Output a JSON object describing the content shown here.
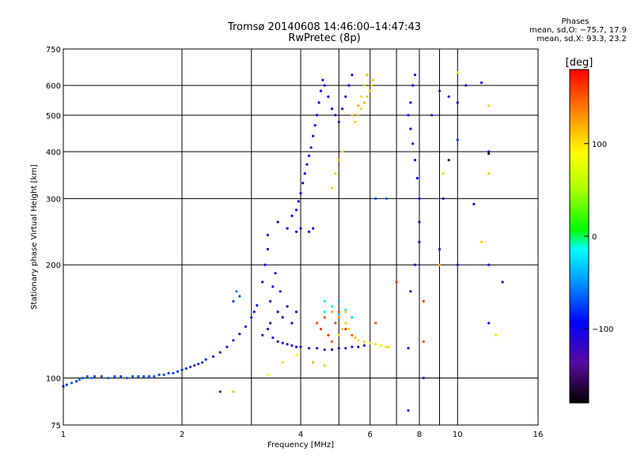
{
  "header": {
    "title_line1": "Tromsø 20140608 14:46:00–14:47:43",
    "title_line2": "RwPretec (8p)",
    "phase_title": "Phases",
    "phase_o": "mean, sd,O: −75.7, 17.9",
    "phase_x": "mean, sd,X:  93.3, 23.2"
  },
  "colorbar": {
    "label": "[deg]",
    "ticks": [
      {
        "value": 100,
        "label": "100"
      },
      {
        "value": 0,
        "label": "0"
      },
      {
        "value": -100,
        "label": "−100"
      }
    ],
    "range": [
      -180,
      180
    ]
  },
  "chart_data": {
    "type": "scatter",
    "xlabel": "Frequency [MHz]",
    "ylabel": "Stationary phase Virtual Height [km]",
    "x_scale": "log",
    "y_scale": "log",
    "xlim": [
      1,
      16
    ],
    "ylim": [
      75,
      750
    ],
    "grid": true,
    "x_ticks": [
      1,
      2,
      4,
      6,
      8,
      10,
      16
    ],
    "x_minor_gridlines": [
      3,
      5,
      7,
      9
    ],
    "y_ticks": [
      75,
      100,
      200,
      300,
      400,
      500,
      600,
      750
    ],
    "color_by": "phase (deg)",
    "series": [
      {
        "points": [
          [
            1.0,
            95,
            -85
          ],
          [
            1.02,
            96,
            -80
          ],
          [
            1.05,
            97,
            -70
          ],
          [
            1.08,
            98,
            -75
          ],
          [
            1.1,
            99,
            -60
          ],
          [
            1.12,
            100,
            -70
          ],
          [
            1.15,
            101,
            -65
          ],
          [
            1.18,
            100,
            -60
          ],
          [
            1.2,
            101,
            -75
          ],
          [
            1.25,
            101,
            -70
          ],
          [
            1.3,
            100,
            -65
          ],
          [
            1.35,
            101,
            -70
          ],
          [
            1.4,
            101,
            -72
          ],
          [
            1.45,
            100,
            -68
          ],
          [
            1.5,
            101,
            -70
          ],
          [
            1.55,
            101,
            -66
          ],
          [
            1.6,
            101,
            -72
          ],
          [
            1.65,
            101,
            -70
          ],
          [
            1.7,
            101,
            -68
          ],
          [
            1.75,
            102,
            -72
          ],
          [
            1.8,
            102,
            -70
          ],
          [
            1.85,
            103,
            -75
          ],
          [
            1.9,
            103,
            -72
          ],
          [
            1.95,
            104,
            -75
          ],
          [
            2.0,
            105,
            -78
          ],
          [
            2.05,
            106,
            -80
          ],
          [
            2.1,
            107,
            -78
          ],
          [
            2.15,
            108,
            -80
          ],
          [
            2.2,
            109,
            -82
          ],
          [
            2.25,
            110,
            -78
          ],
          [
            2.3,
            112,
            -82
          ],
          [
            2.4,
            114,
            -80
          ],
          [
            2.5,
            117,
            -82
          ],
          [
            2.6,
            121,
            -84
          ],
          [
            2.7,
            126,
            -86
          ],
          [
            2.8,
            131,
            -88
          ],
          [
            2.9,
            137,
            -85
          ],
          [
            3.0,
            145,
            -88
          ],
          [
            3.05,
            150,
            -85
          ],
          [
            3.1,
            156,
            -88
          ],
          [
            2.75,
            170,
            -60
          ],
          [
            2.8,
            165,
            -70
          ],
          [
            2.7,
            160,
            -75
          ]
        ]
      },
      {
        "points": [
          [
            3.2,
            130,
            -105
          ],
          [
            3.3,
            135,
            -110
          ],
          [
            3.35,
            140,
            -112
          ],
          [
            3.4,
            128,
            -110
          ],
          [
            3.5,
            125,
            -112
          ],
          [
            3.6,
            124,
            -108
          ],
          [
            3.7,
            123,
            -110
          ],
          [
            3.8,
            122,
            -112
          ],
          [
            3.9,
            121,
            -110
          ],
          [
            4.0,
            121,
            -112
          ],
          [
            4.2,
            120,
            -110
          ],
          [
            4.4,
            120,
            -112
          ],
          [
            4.6,
            119,
            -110
          ],
          [
            4.8,
            119,
            -112
          ],
          [
            5.0,
            120,
            -110
          ],
          [
            5.2,
            120,
            -108
          ],
          [
            5.4,
            121,
            -110
          ],
          [
            5.6,
            121,
            -112
          ],
          [
            5.8,
            122,
            -110
          ]
        ]
      },
      {
        "points": [
          [
            3.2,
            180,
            -105
          ],
          [
            3.25,
            200,
            -100
          ],
          [
            3.3,
            220,
            -95
          ],
          [
            3.3,
            240,
            -110
          ],
          [
            3.35,
            160,
            -105
          ],
          [
            3.4,
            175,
            -100
          ],
          [
            3.45,
            190,
            -95
          ],
          [
            3.5,
            150,
            -100
          ],
          [
            3.55,
            170,
            -105
          ],
          [
            3.6,
            145,
            -100
          ],
          [
            3.7,
            155,
            -105
          ],
          [
            3.8,
            140,
            -100
          ],
          [
            3.9,
            150,
            -105
          ],
          [
            3.5,
            260,
            -90
          ],
          [
            3.7,
            250,
            -95
          ],
          [
            3.9,
            245,
            -100
          ],
          [
            4.0,
            250,
            -95
          ],
          [
            4.2,
            245,
            -100
          ],
          [
            4.3,
            250,
            -98
          ]
        ]
      },
      {
        "points": [
          [
            3.8,
            270,
            -100
          ],
          [
            3.9,
            280,
            -95
          ],
          [
            3.95,
            295,
            -100
          ],
          [
            4.0,
            310,
            -95
          ],
          [
            4.05,
            330,
            -100
          ],
          [
            4.1,
            350,
            -95
          ],
          [
            4.15,
            370,
            -100
          ],
          [
            4.2,
            390,
            -95
          ],
          [
            4.25,
            410,
            -100
          ],
          [
            4.3,
            440,
            -95
          ],
          [
            4.35,
            470,
            -100
          ],
          [
            4.4,
            500,
            -95
          ],
          [
            4.45,
            540,
            -100
          ],
          [
            4.5,
            580,
            -95
          ],
          [
            4.55,
            620,
            -100
          ],
          [
            4.6,
            600,
            -105
          ],
          [
            4.7,
            560,
            -100
          ],
          [
            4.8,
            520,
            -95
          ],
          [
            4.9,
            500,
            -100
          ],
          [
            5.0,
            480,
            -105
          ],
          [
            5.1,
            520,
            -100
          ],
          [
            5.2,
            560,
            -105
          ],
          [
            5.3,
            600,
            -100
          ],
          [
            5.4,
            640,
            -95
          ]
        ]
      },
      {
        "points": [
          [
            5.0,
            130,
            100
          ],
          [
            5.1,
            135,
            105
          ],
          [
            5.2,
            140,
            110
          ],
          [
            5.3,
            135,
            100
          ],
          [
            5.4,
            130,
            105
          ],
          [
            5.5,
            128,
            110
          ],
          [
            5.6,
            126,
            100
          ],
          [
            5.8,
            125,
            105
          ],
          [
            6.0,
            124,
            100
          ],
          [
            6.2,
            123,
            105
          ],
          [
            6.4,
            122,
            100
          ],
          [
            6.6,
            121,
            105
          ],
          [
            6.7,
            121,
            100
          ],
          [
            4.8,
            150,
            120
          ],
          [
            5.0,
            145,
            130
          ],
          [
            5.2,
            150,
            110
          ],
          [
            5.4,
            145,
            125
          ]
        ]
      },
      {
        "points": [
          [
            5.5,
            480,
            110
          ],
          [
            5.6,
            500,
            115
          ],
          [
            5.7,
            520,
            105
          ],
          [
            5.8,
            540,
            120
          ],
          [
            5.9,
            560,
            110
          ],
          [
            6.0,
            580,
            115
          ],
          [
            6.05,
            600,
            105
          ],
          [
            6.1,
            620,
            110
          ],
          [
            5.7,
            560,
            100
          ],
          [
            5.8,
            600,
            110
          ],
          [
            5.9,
            640,
            115
          ],
          [
            5.6,
            530,
            120
          ],
          [
            5.4,
            500,
            110
          ],
          [
            4.9,
            350,
            105
          ],
          [
            5.0,
            380,
            110
          ],
          [
            5.1,
            400,
            100
          ],
          [
            4.8,
            320,
            105
          ]
        ]
      },
      {
        "points": [
          [
            4.4,
            140,
            150
          ],
          [
            4.5,
            135,
            160
          ],
          [
            4.6,
            145,
            155
          ],
          [
            4.7,
            130,
            165
          ],
          [
            4.8,
            125,
            150
          ],
          [
            4.9,
            140,
            160
          ],
          [
            5.0,
            150,
            155
          ],
          [
            5.2,
            135,
            160
          ],
          [
            5.4,
            130,
            150
          ],
          [
            8.2,
            160,
            160
          ],
          [
            8.2,
            125,
            150
          ],
          [
            7.0,
            180,
            160
          ],
          [
            6.2,
            140,
            150
          ]
        ]
      },
      {
        "points": [
          [
            4.6,
            150,
            -20
          ],
          [
            4.8,
            155,
            -10
          ],
          [
            5.0,
            148,
            -30
          ],
          [
            5.2,
            152,
            -15
          ],
          [
            5.4,
            145,
            -25
          ],
          [
            5.0,
            160,
            -40
          ],
          [
            4.6,
            160,
            -20
          ]
        ]
      },
      {
        "points": [
          [
            7.6,
            170,
            -110
          ],
          [
            7.8,
            200,
            -105
          ],
          [
            8.0,
            230,
            -100
          ],
          [
            8.0,
            260,
            -110
          ],
          [
            8.0,
            300,
            -105
          ],
          [
            7.9,
            340,
            -100
          ],
          [
            7.8,
            380,
            -110
          ],
          [
            7.7,
            420,
            -105
          ],
          [
            7.6,
            460,
            -100
          ],
          [
            7.5,
            500,
            -110
          ],
          [
            7.6,
            540,
            -105
          ],
          [
            7.7,
            600,
            -100
          ],
          [
            7.8,
            640,
            -105
          ],
          [
            9.0,
            580,
            -110
          ],
          [
            9.5,
            560,
            -105
          ],
          [
            10.0,
            540,
            -100
          ],
          [
            10.5,
            600,
            -110
          ],
          [
            11.5,
            610,
            -105
          ],
          [
            12.0,
            400,
            -110
          ],
          [
            12.0,
            200,
            -105
          ],
          [
            13.0,
            180,
            -100
          ],
          [
            9.2,
            300,
            -110
          ],
          [
            9.0,
            220,
            -120
          ],
          [
            10.0,
            200,
            -130
          ],
          [
            11.0,
            290,
            -100
          ],
          [
            12.0,
            140,
            -110
          ],
          [
            8.2,
            100,
            -130
          ],
          [
            7.5,
            82,
            -80
          ],
          [
            6.2,
            300,
            -70
          ],
          [
            6.6,
            300,
            -60
          ]
        ]
      },
      {
        "points": [
          [
            9.0,
            200,
            120
          ],
          [
            9.2,
            350,
            105
          ],
          [
            10.0,
            650,
            100
          ],
          [
            12.0,
            350,
            110
          ],
          [
            12.0,
            530,
            105
          ],
          [
            11.5,
            230,
            110
          ],
          [
            12.5,
            130,
            100
          ],
          [
            9.5,
            380,
            -150
          ],
          [
            12.0,
            395,
            -170
          ],
          [
            8.6,
            500,
            -120
          ],
          [
            7.5,
            120,
            -100
          ],
          [
            10.0,
            430,
            -80
          ]
        ]
      },
      {
        "points": [
          [
            2.5,
            92,
            -140
          ],
          [
            2.7,
            92,
            40
          ],
          [
            3.3,
            102,
            90
          ],
          [
            3.6,
            110,
            100
          ],
          [
            3.9,
            115,
            90
          ],
          [
            4.3,
            110,
            120
          ],
          [
            4.6,
            108,
            110
          ]
        ]
      }
    ]
  }
}
